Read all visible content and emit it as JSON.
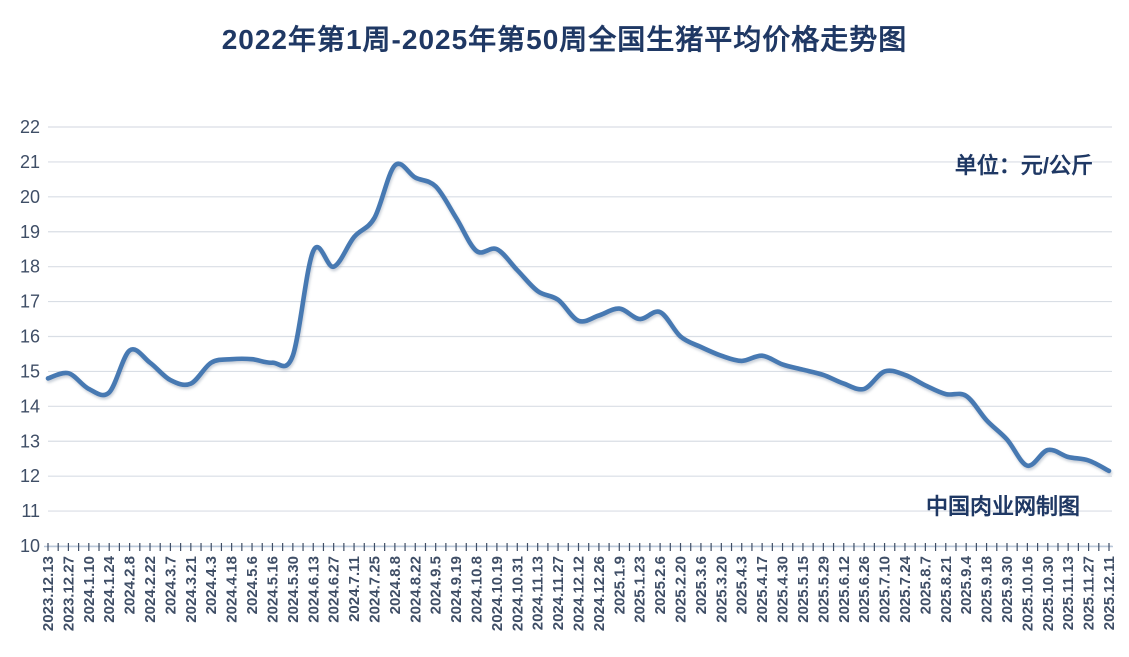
{
  "chart": {
    "title": "2022年第1周-2025年第50周全国生猪平均价格走势图",
    "unit_label": "单位：元/公斤",
    "credit": "中国肉业网制图"
  },
  "colors": {
    "title_navy": "#1f3864",
    "line_blue": "#4679b2",
    "gridline_gray": "#d9dee5",
    "axis_line": "#b9c7d9",
    "tick_label": "#3f4e66"
  },
  "chart_data": {
    "type": "line",
    "title": "2022年第1周-2025年第50周全国生猪平均价格走势图",
    "unit": "元/公斤",
    "series_name": "全国生猪平均价格",
    "smooth": true,
    "grid": true,
    "legend": "none",
    "ylim": [
      10,
      22
    ],
    "y_ticks": [
      22,
      21,
      20,
      19,
      18,
      17,
      16,
      15,
      14,
      13,
      12,
      11,
      10
    ],
    "x_labels": [
      "2023.12.13",
      "2023.12.27",
      "2024.1.10",
      "2024.1.24",
      "2024.2.8",
      "2024.2.22",
      "2024.3.7",
      "2024.3.21",
      "2024.4.3",
      "2024.4.18",
      "2024.5.6",
      "2024.5.16",
      "2024.5.30",
      "2024.6.13",
      "2024.6.27",
      "2024.7.11",
      "2024.7.25",
      "2024.8.8",
      "2024.8.22",
      "2024.9.5",
      "2024.9.19",
      "2024.10.8",
      "2024.10.19",
      "2024.10.31",
      "2024.11.13",
      "2024.11.27",
      "2024.12.12",
      "2024.12.26",
      "2025.1.9",
      "2025.1.23",
      "2025.2.6",
      "2025.2.20",
      "2025.3.6",
      "2025.3.20",
      "2025.4.3",
      "2025.4.17",
      "2025.4.30",
      "2025.5.15",
      "2025.5.29",
      "2025.6.12",
      "2025.6.26",
      "2025.7.10",
      "2025.7.24",
      "2025.8.7",
      "2025.8.21",
      "2025.9.4",
      "2025.9.18",
      "2025.9.30",
      "2025.10.16",
      "2025.10.30",
      "2025.11.13",
      "2025.11.27",
      "2025.12.11"
    ],
    "values": [
      14.8,
      14.95,
      14.5,
      14.4,
      15.6,
      15.25,
      14.75,
      14.65,
      15.25,
      15.35,
      15.35,
      15.25,
      15.45,
      18.45,
      18.0,
      18.85,
      19.4,
      20.9,
      20.55,
      20.3,
      19.4,
      18.45,
      18.5,
      17.9,
      17.3,
      17.05,
      16.45,
      16.6,
      16.8,
      16.5,
      16.7,
      16.0,
      15.7,
      15.45,
      15.3,
      15.45,
      15.2,
      15.05,
      14.9,
      14.65,
      14.5,
      15.0,
      14.9,
      14.6,
      14.35,
      14.3,
      13.6,
      13.05,
      12.3,
      12.75,
      12.55,
      12.45,
      12.15
    ]
  }
}
